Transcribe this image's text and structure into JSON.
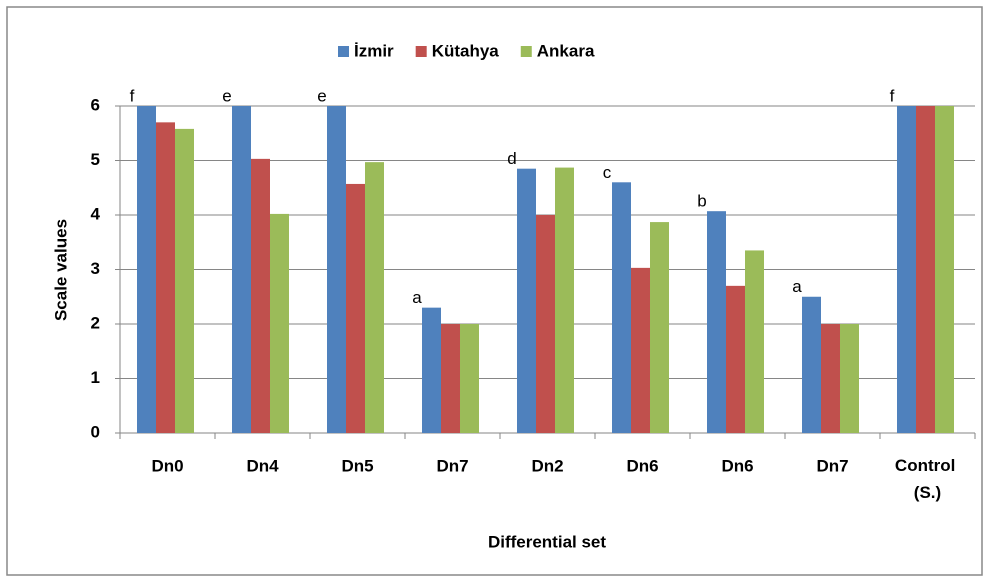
{
  "chart_data": {
    "type": "bar",
    "x_label": "Differential set",
    "y_label": "Scale values",
    "categories": [
      "Dn0",
      "Dn4",
      "Dn5",
      "Dn7",
      "Dn2",
      "Dn6",
      "Dn6",
      "Dn7",
      "Control (S.)"
    ],
    "annotations": [
      "f",
      "e",
      "e",
      "a",
      "d",
      "c",
      "b",
      "a",
      "f"
    ],
    "series": [
      {
        "name": "İzmir",
        "color": "#4f81bd",
        "values": [
          6,
          6,
          6,
          2.3,
          4.85,
          4.6,
          4.07,
          2.5,
          6
        ]
      },
      {
        "name": "Kütahya",
        "color": "#c0504d",
        "values": [
          5.7,
          5.03,
          4.57,
          2,
          4,
          3.03,
          2.7,
          2,
          6
        ]
      },
      {
        "name": "Ankara",
        "color": "#9bbb59",
        "values": [
          5.58,
          4.02,
          4.97,
          2,
          4.87,
          3.87,
          3.35,
          2,
          6
        ]
      }
    ],
    "ylim": [
      0,
      6
    ],
    "yticks": [
      0,
      1,
      2,
      3,
      4,
      5,
      6
    ],
    "grid": true,
    "legend": "top"
  }
}
